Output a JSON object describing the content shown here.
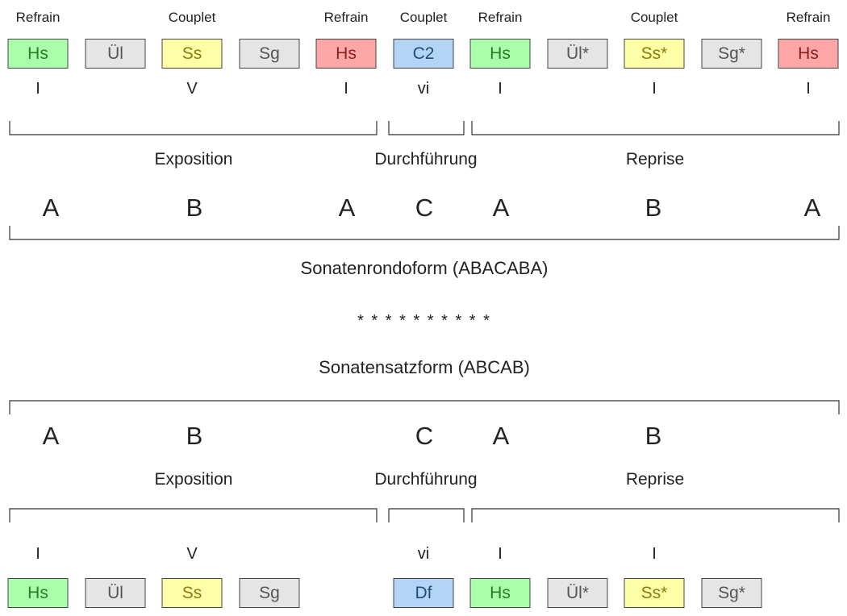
{
  "top": {
    "roles": [
      "Refrain",
      "Couplet",
      "Refrain",
      "Couplet",
      "Refrain",
      "Couplet",
      "Refrain"
    ],
    "boxes": [
      "Hs",
      "Ül",
      "Ss",
      "Sg",
      "Hs",
      "C2",
      "Hs",
      "Ül*",
      "Ss*",
      "Sg*",
      "Hs"
    ],
    "degrees": [
      "I",
      "V",
      "I",
      "vi",
      "I",
      "I",
      "I"
    ],
    "sections": [
      "Exposition",
      "Durchführung",
      "Reprise"
    ],
    "letters": [
      "A",
      "B",
      "A",
      "C",
      "A",
      "B",
      "A"
    ],
    "form_title": "Sonatenrondoform (ABACABA)"
  },
  "separator": "* * * * * * * * * *",
  "bottom": {
    "form_title": "Sonatensatzform (ABCAB)",
    "letters": [
      "A",
      "B",
      "C",
      "A",
      "B"
    ],
    "sections": [
      "Exposition",
      "Durchführung",
      "Reprise"
    ],
    "degrees": [
      "I",
      "V",
      "vi",
      "I",
      "I"
    ],
    "boxes": [
      "Hs",
      "Ül",
      "Ss",
      "Sg",
      "Df",
      "Hs",
      "Ül*",
      "Ss*",
      "Sg*"
    ]
  },
  "colors": {
    "hauptsatz_green": "#aaffaa",
    "hauptsatz_red": "#ffa6a6",
    "ueberleitung_gray": "#e5e5e5",
    "seitensatz_yellow": "#ffffa8",
    "schlussgruppe_gray": "#e5e5e5",
    "durchfuehrung_blue": "#b3d4f5"
  }
}
